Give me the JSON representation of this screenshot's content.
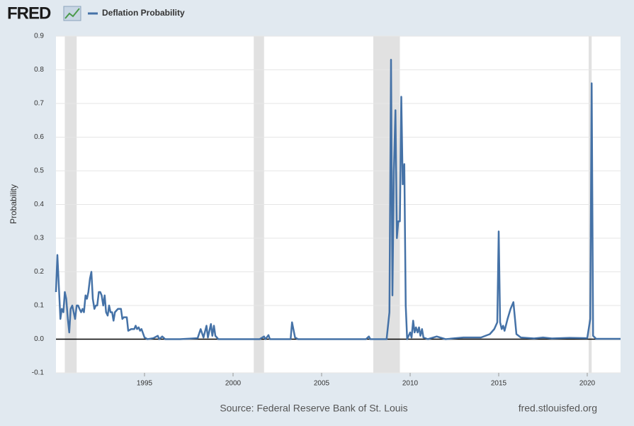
{
  "logo": "FRED",
  "chart_data": {
    "type": "line",
    "y_label": "Probability",
    "source": "Source: Federal Reserve Bank of St. Louis",
    "site": "fred.stlouisfed.org",
    "x": [
      1990.0,
      1990.08,
      1990.17,
      1990.25,
      1990.33,
      1990.42,
      1990.5,
      1990.58,
      1990.67,
      1990.75,
      1990.83,
      1990.92,
      1991.0,
      1991.08,
      1991.17,
      1991.25,
      1991.33,
      1991.42,
      1991.5,
      1991.58,
      1991.67,
      1991.75,
      1991.83,
      1991.92,
      1992.0,
      1992.08,
      1992.17,
      1992.25,
      1992.33,
      1992.42,
      1992.5,
      1992.58,
      1992.67,
      1992.75,
      1992.83,
      1992.92,
      1993.0,
      1993.08,
      1993.17,
      1993.25,
      1993.33,
      1993.5,
      1993.67,
      1993.75,
      1993.83,
      1994.0,
      1994.08,
      1994.25,
      1994.42,
      1994.5,
      1994.58,
      1994.67,
      1994.75,
      1994.83,
      1995.0,
      1995.17,
      1995.5,
      1995.75,
      1995.83,
      1996.0,
      1996.17,
      1997.0,
      1998.0,
      1998.17,
      1998.33,
      1998.5,
      1998.58,
      1998.75,
      1998.83,
      1998.92,
      1999.0,
      1999.17,
      2001.5,
      2001.75,
      2001.83,
      2002.0,
      2002.08,
      2003.0,
      2003.25,
      2003.33,
      2003.5,
      2003.67,
      2007.5,
      2007.67,
      2007.75,
      2008.67,
      2008.83,
      2008.92,
      2009.0,
      2009.08,
      2009.17,
      2009.25,
      2009.33,
      2009.42,
      2009.5,
      2009.58,
      2009.67,
      2009.75,
      2009.83,
      2010.0,
      2010.08,
      2010.17,
      2010.25,
      2010.33,
      2010.42,
      2010.5,
      2010.58,
      2010.67,
      2010.75,
      2011.0,
      2011.5,
      2012.0,
      2013.0,
      2014.0,
      2014.5,
      2014.75,
      2014.92,
      2015.0,
      2015.08,
      2015.17,
      2015.25,
      2015.33,
      2015.5,
      2015.67,
      2015.83,
      2015.92,
      2016.0,
      2016.25,
      2017.0,
      2017.5,
      2018.0,
      2019.0,
      2020.0,
      2020.17,
      2020.25,
      2020.33,
      2020.5,
      2021.88
    ],
    "series": [
      {
        "name": "Deflation Probability",
        "color": "#4572a7",
        "values": [
          0.14,
          0.25,
          0.15,
          0.06,
          0.09,
          0.08,
          0.14,
          0.12,
          0.06,
          0.02,
          0.09,
          0.1,
          0.08,
          0.06,
          0.1,
          0.1,
          0.09,
          0.08,
          0.09,
          0.08,
          0.13,
          0.12,
          0.14,
          0.18,
          0.2,
          0.12,
          0.09,
          0.1,
          0.1,
          0.14,
          0.14,
          0.13,
          0.1,
          0.13,
          0.08,
          0.07,
          0.1,
          0.08,
          0.08,
          0.055,
          0.08,
          0.09,
          0.09,
          0.06,
          0.065,
          0.065,
          0.025,
          0.03,
          0.03,
          0.04,
          0.03,
          0.035,
          0.025,
          0.03,
          0.005,
          0.0,
          0.003,
          0.01,
          0.0,
          0.008,
          0.0,
          0.0,
          0.003,
          0.03,
          0.005,
          0.04,
          0.005,
          0.045,
          0.01,
          0.04,
          0.01,
          0.0,
          0.0,
          0.008,
          0.0,
          0.012,
          0.0,
          0.0,
          0.0,
          0.05,
          0.005,
          0.0,
          0.0,
          0.008,
          0.0,
          0.0,
          0.08,
          0.83,
          0.13,
          0.5,
          0.68,
          0.3,
          0.35,
          0.35,
          0.72,
          0.46,
          0.52,
          0.1,
          0.0,
          0.02,
          0.005,
          0.055,
          0.02,
          0.035,
          0.02,
          0.035,
          0.01,
          0.03,
          0.005,
          0.0,
          0.008,
          0.0,
          0.005,
          0.005,
          0.015,
          0.03,
          0.05,
          0.32,
          0.05,
          0.03,
          0.04,
          0.025,
          0.06,
          0.09,
          0.11,
          0.06,
          0.015,
          0.005,
          0.002,
          0.005,
          0.002,
          0.004,
          0.003,
          0.06,
          0.76,
          0.01,
          0.001,
          0.001
        ]
      }
    ],
    "recessions": [
      [
        1990.5,
        1991.17
      ],
      [
        2001.17,
        2001.75
      ],
      [
        2007.92,
        2009.42
      ],
      [
        2020.08,
        2020.25
      ]
    ],
    "recession_color": "#e1e1e1",
    "xlim": [
      1990.0,
      2021.88
    ],
    "xticks": [
      1995,
      2000,
      2005,
      2010,
      2015,
      2020
    ],
    "ylim": [
      -0.1,
      0.9
    ],
    "yticks": [
      -0.1,
      {
        "value": 0,
        "label": "0.0"
      },
      0.1,
      0.2,
      0.3,
      0.4,
      0.5,
      0.6,
      0.7,
      0.8,
      0.9
    ],
    "grid": true
  }
}
